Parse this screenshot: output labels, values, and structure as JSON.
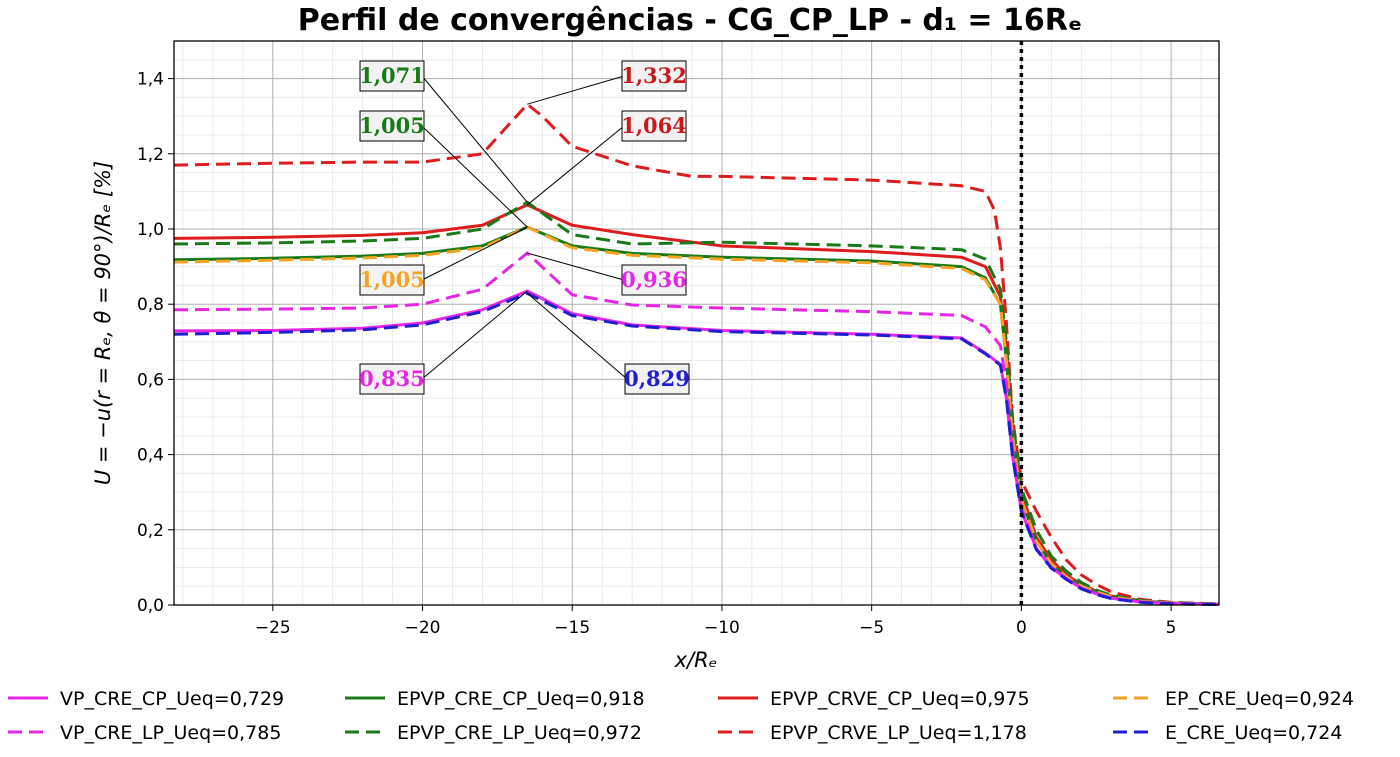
{
  "chart_data": {
    "type": "line",
    "title": "Perfil de convergências - CG_CP_LP - d₁ = 16Rₑ",
    "xlabel": "x/Rₑ",
    "ylabel": "U = −u(r = Rₑ, θ = 90°)/Rₑ [%]",
    "xlim": [
      -28.3,
      6.6
    ],
    "ylim": [
      0.0,
      1.5
    ],
    "xticks": [
      -25,
      -20,
      -15,
      -10,
      -5,
      0,
      5
    ],
    "xtick_labels": [
      "−25",
      "−20",
      "−15",
      "−10",
      "−5",
      "0",
      "5"
    ],
    "yticks": [
      0.0,
      0.2,
      0.4,
      0.6,
      0.8,
      1.0,
      1.2,
      1.4
    ],
    "ytick_labels": [
      "0,0",
      "0,2",
      "0,4",
      "0,6",
      "0,8",
      "1,0",
      "1,2",
      "1,4"
    ],
    "grid": true,
    "minor_grid": true,
    "vertical_marker_x": 0,
    "legend_placement": "bottom",
    "series": [
      {
        "name": "VP_CRE_CP_Ueq=0,729",
        "color": "#e625e6",
        "dash": "solid",
        "x": [
          -28.3,
          -25,
          -22,
          -20,
          -18,
          -16.5,
          -15,
          -13,
          -10,
          -5,
          -2,
          -1.2,
          -0.7,
          -0.5,
          -0.3,
          0,
          0.5,
          1,
          1.5,
          2,
          2.5,
          3,
          4,
          5,
          6.6
        ],
        "y": [
          0.729,
          0.73,
          0.736,
          0.75,
          0.785,
          0.835,
          0.775,
          0.745,
          0.73,
          0.72,
          0.71,
          0.67,
          0.64,
          0.55,
          0.4,
          0.25,
          0.15,
          0.1,
          0.07,
          0.045,
          0.03,
          0.018,
          0.008,
          0.004,
          0.002
        ]
      },
      {
        "name": "VP_CRE_LP_Ueq=0,785",
        "color": "#e625e6",
        "dash": "dashed",
        "x": [
          -28.3,
          -25,
          -22,
          -20,
          -18,
          -16.5,
          -15,
          -13,
          -10,
          -5,
          -2,
          -1.2,
          -0.7,
          -0.5,
          -0.3,
          0,
          0.5,
          1,
          1.5,
          2,
          2.5,
          3,
          4,
          5,
          6.6
        ],
        "y": [
          0.785,
          0.787,
          0.79,
          0.8,
          0.84,
          0.936,
          0.825,
          0.798,
          0.79,
          0.78,
          0.77,
          0.74,
          0.69,
          0.59,
          0.42,
          0.26,
          0.15,
          0.1,
          0.07,
          0.045,
          0.03,
          0.018,
          0.008,
          0.004,
          0.002
        ]
      },
      {
        "name": "EPVP_CRE_CP_Ueq=0,918",
        "color": "#1a7a1a",
        "dash": "solid",
        "x": [
          -28.3,
          -25,
          -22,
          -20,
          -18,
          -16.5,
          -15,
          -13,
          -10,
          -5,
          -2,
          -1.2,
          -0.7,
          -0.5,
          -0.3,
          0,
          0.5,
          1,
          1.5,
          2,
          2.5,
          3,
          4,
          5,
          6.6
        ],
        "y": [
          0.918,
          0.922,
          0.928,
          0.935,
          0.955,
          1.005,
          0.955,
          0.935,
          0.925,
          0.915,
          0.9,
          0.87,
          0.8,
          0.65,
          0.45,
          0.28,
          0.17,
          0.11,
          0.075,
          0.05,
          0.035,
          0.022,
          0.01,
          0.005,
          0.002
        ]
      },
      {
        "name": "EPVP_CRE_LP_Ueq=0,972",
        "color": "#1a7a1a",
        "dash": "dashed",
        "x": [
          -28.3,
          -25,
          -22,
          -20,
          -18,
          -16.5,
          -15,
          -13,
          -10,
          -5,
          -2,
          -1.2,
          -0.7,
          -0.5,
          -0.3,
          0,
          0.5,
          1,
          1.5,
          2,
          2.5,
          3,
          4,
          5,
          6.6
        ],
        "y": [
          0.96,
          0.963,
          0.968,
          0.975,
          1.0,
          1.071,
          0.985,
          0.96,
          0.965,
          0.955,
          0.945,
          0.92,
          0.84,
          0.7,
          0.5,
          0.31,
          0.2,
          0.13,
          0.09,
          0.06,
          0.04,
          0.026,
          0.012,
          0.006,
          0.003
        ]
      },
      {
        "name": "EPVP_CRVE_CP_Ueq=0,975",
        "color": "#dd1d1d",
        "dash": "solid",
        "x": [
          -28.3,
          -25,
          -22,
          -20,
          -18,
          -16.5,
          -15,
          -13,
          -10,
          -5,
          -2,
          -1.2,
          -0.7,
          -0.5,
          -0.3,
          0,
          0.5,
          1,
          1.5,
          2,
          2.5,
          3,
          4,
          5,
          6.6
        ],
        "y": [
          0.975,
          0.978,
          0.983,
          0.99,
          1.01,
          1.064,
          1.01,
          0.985,
          0.955,
          0.94,
          0.925,
          0.9,
          0.82,
          0.68,
          0.47,
          0.3,
          0.18,
          0.12,
          0.08,
          0.055,
          0.037,
          0.024,
          0.011,
          0.005,
          0.002
        ]
      },
      {
        "name": "EPVP_CRVE_LP_Ueq=1,178",
        "color": "#dd1d1d",
        "dash": "dashed",
        "x": [
          -28.3,
          -25,
          -22,
          -20,
          -18,
          -16.5,
          -16,
          -15,
          -13,
          -11,
          -10,
          -5,
          -2,
          -1.2,
          -0.9,
          -0.7,
          -0.5,
          -0.3,
          0,
          0.5,
          1,
          1.5,
          2,
          2.5,
          3,
          4,
          5,
          6.6
        ],
        "y": [
          1.17,
          1.175,
          1.178,
          1.178,
          1.2,
          1.332,
          1.3,
          1.22,
          1.168,
          1.14,
          1.14,
          1.13,
          1.115,
          1.1,
          1.05,
          0.95,
          0.75,
          0.5,
          0.33,
          0.25,
          0.18,
          0.12,
          0.08,
          0.055,
          0.035,
          0.015,
          0.007,
          0.003
        ]
      },
      {
        "name": "EP_CRE_Ueq=0,924",
        "color": "#f4a422",
        "dash": "dashed",
        "x": [
          -28.3,
          -25,
          -22,
          -20,
          -18,
          -16.5,
          -15,
          -13,
          -10,
          -5,
          -2,
          -1.2,
          -0.7,
          -0.5,
          -0.3,
          0,
          0.5,
          1,
          1.5,
          2,
          2.5,
          3,
          4,
          5,
          6.6
        ],
        "y": [
          0.912,
          0.917,
          0.923,
          0.93,
          0.95,
          1.005,
          0.95,
          0.93,
          0.92,
          0.91,
          0.895,
          0.865,
          0.8,
          0.65,
          0.45,
          0.28,
          0.17,
          0.11,
          0.075,
          0.05,
          0.035,
          0.022,
          0.01,
          0.005,
          0.002
        ]
      },
      {
        "name": "E_CRE_Ueq=0,724",
        "color": "#1f1fd0",
        "dash": "dashed",
        "x": [
          -28.3,
          -25,
          -22,
          -20,
          -18,
          -16.5,
          -15,
          -13,
          -10,
          -5,
          -2,
          -1.2,
          -0.7,
          -0.5,
          -0.3,
          0,
          0.5,
          1,
          1.5,
          2,
          2.5,
          3,
          4,
          5,
          6.6
        ],
        "y": [
          0.72,
          0.725,
          0.732,
          0.745,
          0.78,
          0.829,
          0.77,
          0.742,
          0.727,
          0.718,
          0.708,
          0.668,
          0.638,
          0.548,
          0.398,
          0.248,
          0.148,
          0.098,
          0.068,
          0.043,
          0.028,
          0.017,
          0.007,
          0.003,
          0.001
        ]
      }
    ],
    "annotations": [
      {
        "text": "1,071",
        "color": "#1a7a1a",
        "x": -16.5,
        "y": 1.071
      },
      {
        "text": "1,005",
        "color": "#1a7a1a",
        "x": -16.5,
        "y": 1.005
      },
      {
        "text": "1,005",
        "color": "#f4a422",
        "x": -16.5,
        "y": 1.005
      },
      {
        "text": "0,835",
        "color": "#e625e6",
        "x": -16.5,
        "y": 0.835
      },
      {
        "text": "1,332",
        "color": "#c81a1a",
        "x": -16.5,
        "y": 1.332
      },
      {
        "text": "1,064",
        "color": "#c81a1a",
        "x": -16.5,
        "y": 1.064
      },
      {
        "text": "0,936",
        "color": "#e625e6",
        "x": -16.5,
        "y": 0.936
      },
      {
        "text": "0,829",
        "color": "#1f1fd0",
        "x": -16.5,
        "y": 0.829
      }
    ]
  }
}
